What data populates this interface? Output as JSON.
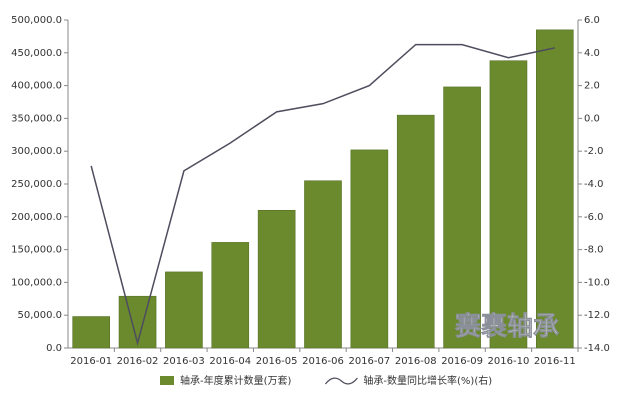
{
  "chart_data": {
    "type": "bar-line",
    "categories": [
      "2016-01",
      "2016-02",
      "2016-03",
      "2016-04",
      "2016-05",
      "2016-06",
      "2016-07",
      "2016-08",
      "2016-09",
      "2016-10",
      "2016-11"
    ],
    "series": [
      {
        "name": "轴承-年度累计数量(万套)",
        "type": "bar",
        "axis": "y",
        "color": "#6b8a2e",
        "values": [
          48000,
          79000,
          116000,
          161000,
          210000,
          255000,
          302000,
          355000,
          398000,
          438000,
          485000
        ]
      },
      {
        "name": "轴承-数量同比增长率(%)(右)",
        "type": "line",
        "axis": "y2",
        "color": "#4d4d5e",
        "values": [
          -2.9,
          -13.7,
          -3.2,
          -1.5,
          0.4,
          0.9,
          2.0,
          4.5,
          4.5,
          3.7,
          4.3
        ]
      }
    ],
    "ylim": [
      0,
      500000
    ],
    "yticks": [
      {
        "value": 0,
        "label": "0.0"
      },
      {
        "value": 50000,
        "label": "50,000.0"
      },
      {
        "value": 100000,
        "label": "100,000.0"
      },
      {
        "value": 150000,
        "label": "150,000.0"
      },
      {
        "value": 200000,
        "label": "200,000.0"
      },
      {
        "value": 250000,
        "label": "250,000.0"
      },
      {
        "value": 300000,
        "label": "300,000.0"
      },
      {
        "value": 350000,
        "label": "350,000.0"
      },
      {
        "value": 400000,
        "label": "400,000.0"
      },
      {
        "value": 450000,
        "label": "450,000.0"
      },
      {
        "value": 500000,
        "label": "500,000.0"
      }
    ],
    "y2lim": [
      -14,
      6
    ],
    "y2ticks": [
      {
        "value": -14,
        "label": "-14.0"
      },
      {
        "value": -12,
        "label": "-12.0"
      },
      {
        "value": -10,
        "label": "-10.0"
      },
      {
        "value": -8,
        "label": "-8.0"
      },
      {
        "value": -6,
        "label": "-6.0"
      },
      {
        "value": -4,
        "label": "-4.0"
      },
      {
        "value": -2,
        "label": "-2.0"
      },
      {
        "value": 0,
        "label": "0.0"
      },
      {
        "value": 2,
        "label": "2.0"
      },
      {
        "value": 4,
        "label": "4.0"
      },
      {
        "value": 6,
        "label": "6.0"
      }
    ],
    "watermark": "赛裹轴承"
  }
}
